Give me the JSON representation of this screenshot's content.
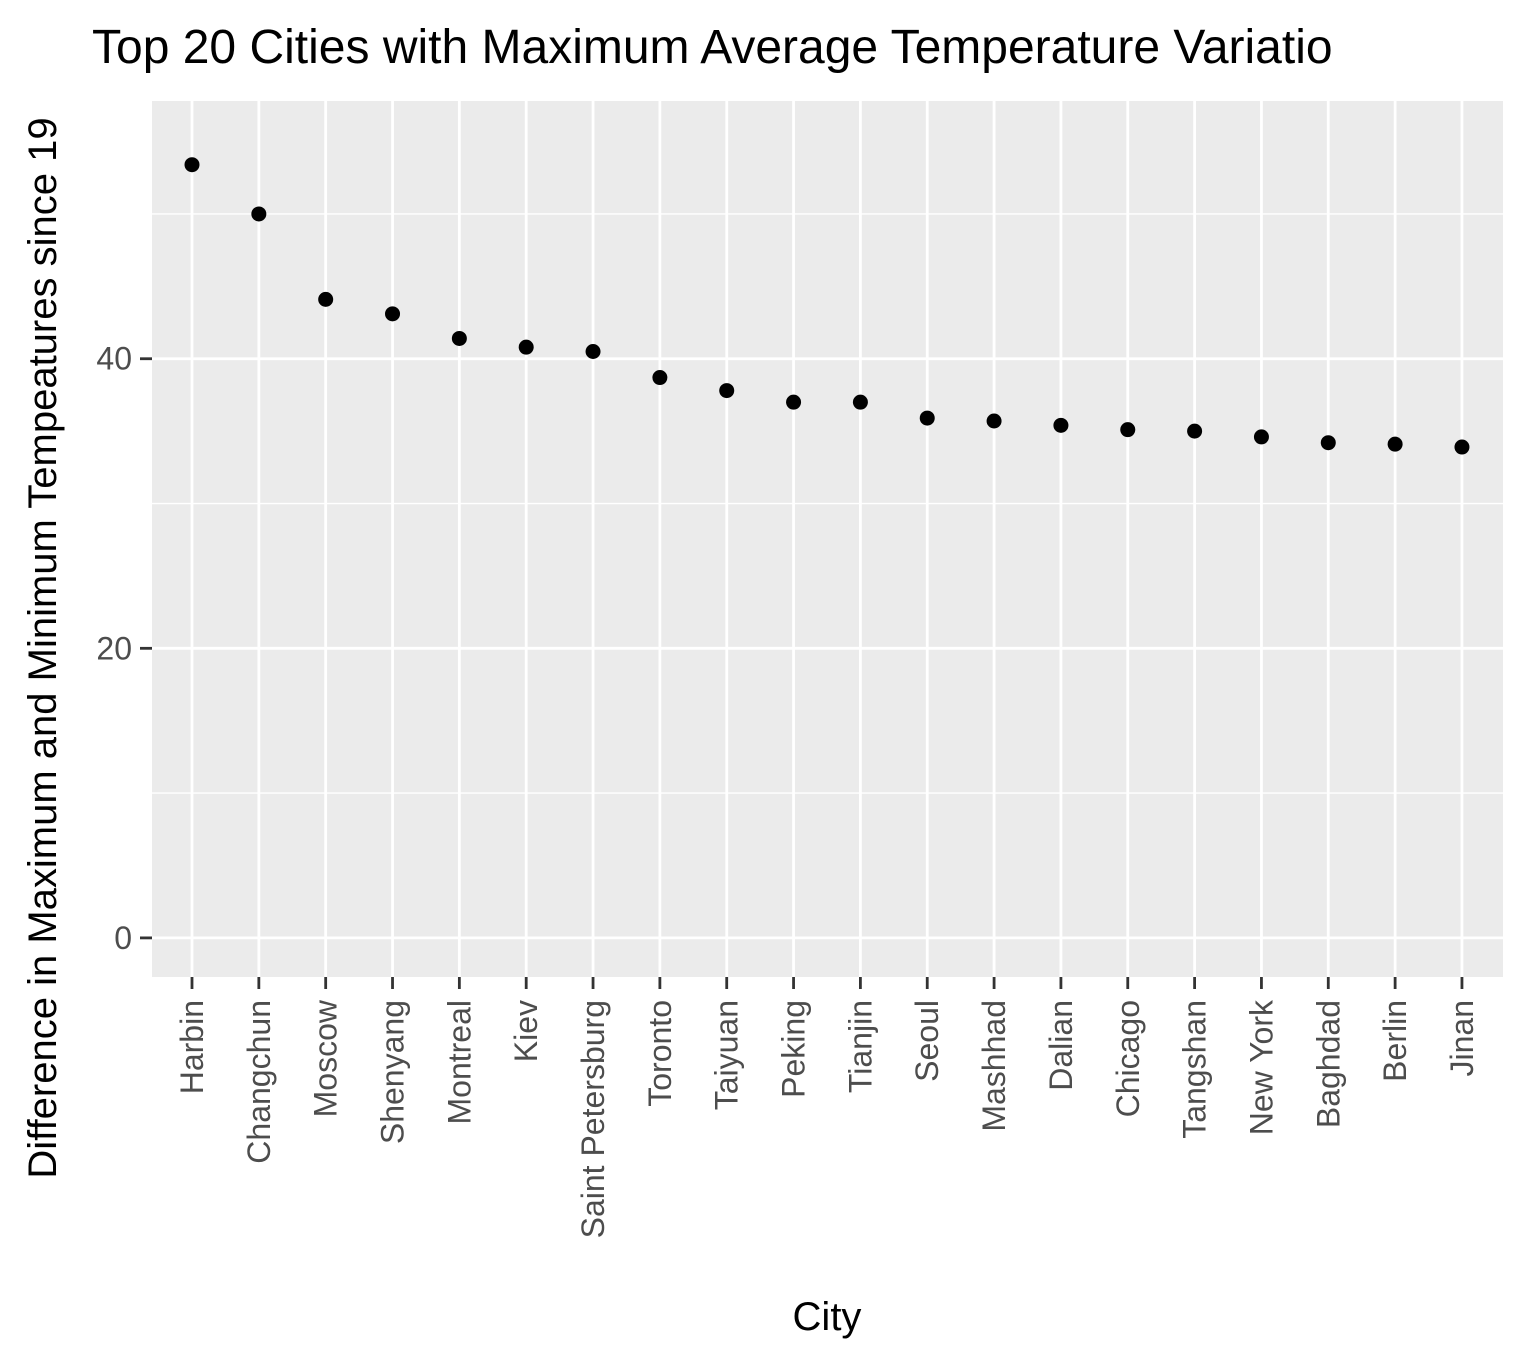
{
  "chart_data": {
    "type": "scatter",
    "title": "Top 20 Cities with Maximum Average Temperature Variatio",
    "xlabel": "City",
    "ylabel": "Difference in Maximum and Minimum Tempeatures since 19",
    "categories": [
      "Harbin",
      "Changchun",
      "Moscow",
      "Shenyang",
      "Montreal",
      "Kiev",
      "Saint Petersburg",
      "Toronto",
      "Taiyuan",
      "Peking",
      "Tianjin",
      "Seoul",
      "Mashhad",
      "Dalian",
      "Chicago",
      "Tangshan",
      "New York",
      "Baghdad",
      "Berlin",
      "Jinan"
    ],
    "values": [
      53.4,
      50.0,
      44.1,
      43.1,
      41.4,
      40.8,
      40.5,
      38.7,
      37.8,
      37.0,
      37.0,
      35.9,
      35.7,
      35.4,
      35.1,
      35.0,
      34.6,
      34.2,
      34.1,
      33.9
    ],
    "yticks": [
      "0",
      "20",
      "40"
    ],
    "ylim": [
      -2.7,
      57.8
    ],
    "grid": true,
    "colors": {
      "panel": "#ebebeb",
      "grid": "#ffffff",
      "point": "#000000",
      "tick_text": "#4d4d4d",
      "tick_mark": "#333333"
    }
  }
}
